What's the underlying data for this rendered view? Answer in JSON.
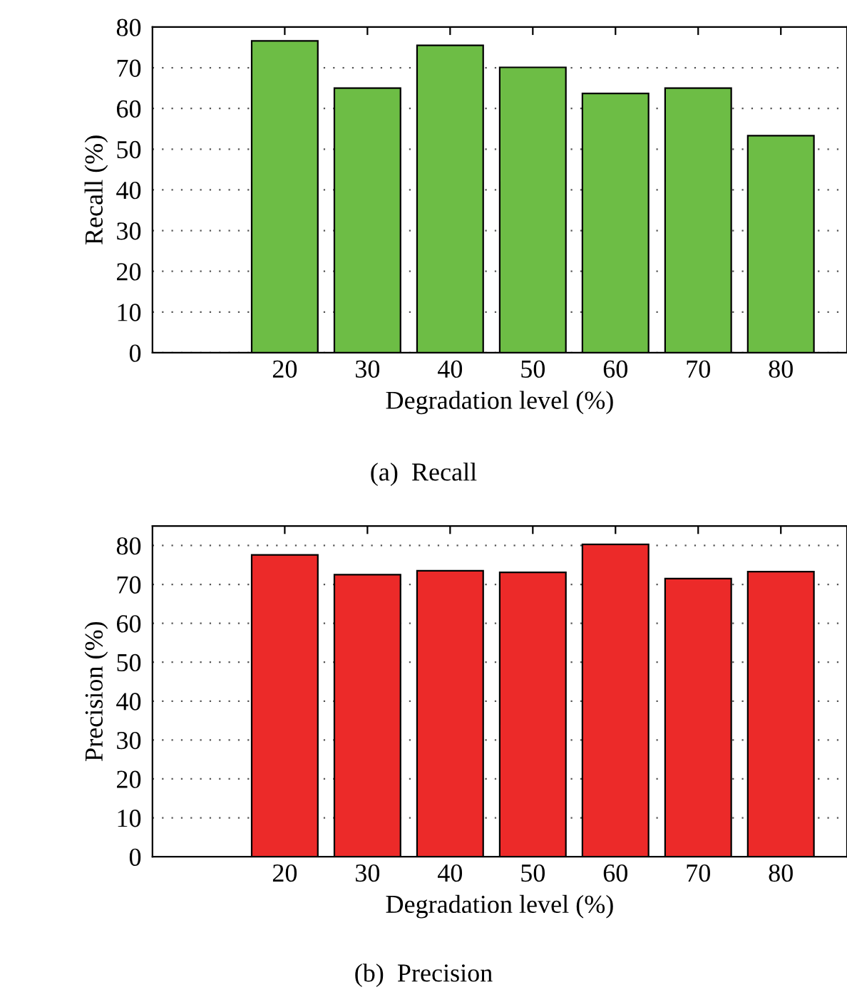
{
  "chart_data": [
    {
      "type": "bar",
      "xlabel": "Degradation level (%)",
      "ylabel": "Recall (%)",
      "annotations": [
        "(a)  Recall"
      ],
      "categories": [
        "20",
        "30",
        "40",
        "50",
        "60",
        "70",
        "80"
      ],
      "series": [
        {
          "color": "#6dbd45",
          "values": [
            76.6,
            65.0,
            75.5,
            70.1,
            63.7,
            65.0,
            53.3
          ]
        }
      ],
      "ylim": [
        0,
        80
      ],
      "yticks": [
        0,
        10,
        20,
        30,
        40,
        50,
        60,
        70,
        80
      ],
      "grid": "y"
    },
    {
      "type": "bar",
      "xlabel": "Degradation level (%)",
      "ylabel": "Precision (%)",
      "annotations": [
        "(b)  Precision"
      ],
      "categories": [
        "20",
        "30",
        "40",
        "50",
        "60",
        "70",
        "80"
      ],
      "series": [
        {
          "color": "#ec2a29",
          "values": [
            77.6,
            72.5,
            73.5,
            73.1,
            80.3,
            71.5,
            73.3
          ]
        }
      ],
      "ylim": [
        0,
        85
      ],
      "yticks": [
        0,
        10,
        20,
        30,
        40,
        50,
        60,
        70,
        80
      ],
      "grid": "y"
    }
  ]
}
